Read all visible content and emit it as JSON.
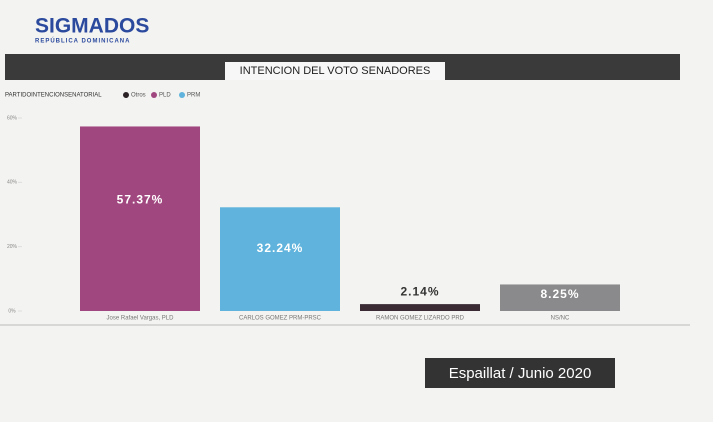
{
  "brand": {
    "name": "SIGMADOS",
    "tagline": "REPÚBLICA DOMINICANA"
  },
  "chart_data": {
    "type": "bar",
    "title": "INTENCION DEL VOTO SENADORES",
    "legend": {
      "title": "PARTIDOINTENCIONSENATORIAL",
      "items": [
        {
          "name": "Otros",
          "color": "#2b2226"
        },
        {
          "name": "PLD",
          "color": "#a0477f"
        },
        {
          "name": "PRM",
          "color": "#5fb3dc"
        }
      ]
    },
    "categories": [
      "Jose Rafael Vargas, PLD",
      "CARLOS GOMEZ PRM-PRSC",
      "RAMON GOMEZ LIZARDO PRD",
      "NS/NC"
    ],
    "values": [
      57.37,
      32.24,
      2.14,
      8.25
    ],
    "value_labels": [
      "57.37%",
      "32.24%",
      "2.14%",
      "8.25%"
    ],
    "colors": [
      "#a0477f",
      "#5fb3dc",
      "#3a2a33",
      "#8a8a8c"
    ],
    "ylim": [
      0,
      60
    ],
    "yticks": [
      {
        "value": 0,
        "label": "0%"
      },
      {
        "value": 20,
        "label": "20%"
      },
      {
        "value": 40,
        "label": "40%"
      },
      {
        "value": 60,
        "label": "60%"
      }
    ]
  },
  "footer": "Espaillat / Junio 2020"
}
